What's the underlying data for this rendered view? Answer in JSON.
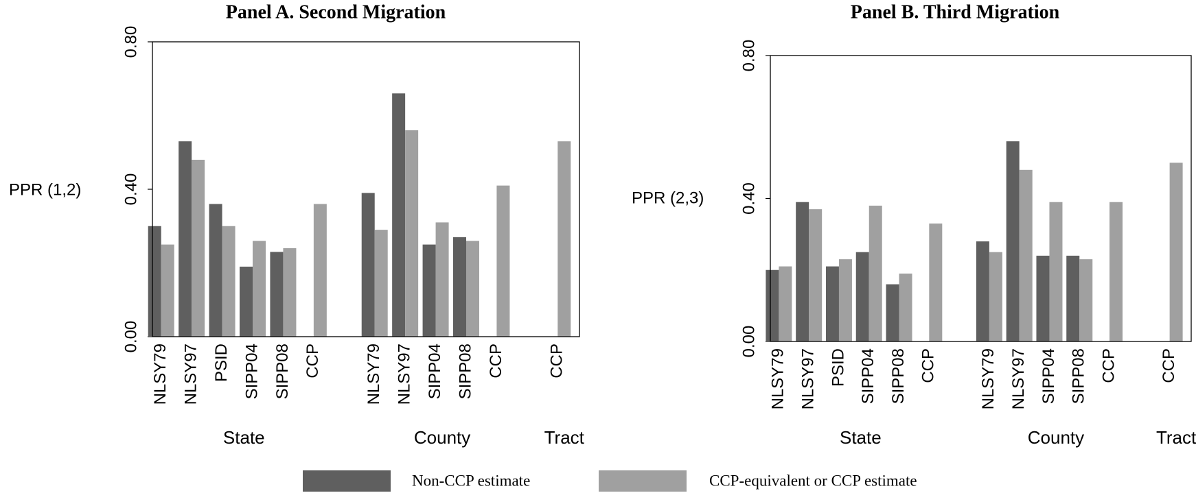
{
  "chart_data": [
    {
      "type": "bar",
      "title": "Panel A. Second Migration",
      "y_label": "PPR (1,2)",
      "categories": [
        "NLSY79",
        "NLSY97",
        "PSID",
        "SIPP04",
        "SIPP08",
        "CCP",
        null,
        "NLSY79",
        "NLSY97",
        "SIPP04",
        "SIPP08",
        "CCP",
        null,
        "CCP"
      ],
      "group_labels": [
        "State",
        "County",
        "Tract"
      ],
      "series": [
        {
          "name": "Non-CCP estimate",
          "color": "#5f5f5f",
          "values": [
            0.3,
            0.53,
            0.36,
            0.19,
            0.23,
            null,
            null,
            0.39,
            0.66,
            0.25,
            0.27,
            null,
            null,
            null
          ]
        },
        {
          "name": "CCP-equivalent or CCP estimate",
          "color": "#a0a0a0",
          "values": [
            0.25,
            0.48,
            0.3,
            0.26,
            0.24,
            0.36,
            null,
            0.29,
            0.56,
            0.31,
            0.26,
            0.41,
            null,
            0.53
          ]
        }
      ],
      "ylim": [
        0,
        0.8
      ],
      "yticks": [
        {
          "value": 0,
          "label": "0.00"
        },
        {
          "value": 0.4,
          "label": "0.40"
        },
        {
          "value": 0.8,
          "label": "0.80"
        }
      ],
      "grid": false
    },
    {
      "type": "bar",
      "title": "Panel B. Third Migration",
      "y_label": "PPR (2,3)",
      "categories": [
        "NLSY79",
        "NLSY97",
        "PSID",
        "SIPP04",
        "SIPP08",
        "CCP",
        null,
        "NLSY79",
        "NLSY97",
        "SIPP04",
        "SIPP08",
        "CCP",
        null,
        "CCP"
      ],
      "group_labels": [
        "State",
        "County",
        "Tract"
      ],
      "series": [
        {
          "color": "#5f5f5f",
          "values": [
            0.2,
            0.39,
            0.21,
            0.25,
            0.16,
            null,
            null,
            0.28,
            0.56,
            0.24,
            0.24,
            null,
            null,
            null
          ]
        },
        {
          "color": "#a0a0a0",
          "values": [
            0.21,
            0.37,
            0.23,
            0.38,
            0.19,
            0.33,
            null,
            0.25,
            0.48,
            0.39,
            0.23,
            0.39,
            null,
            0.5
          ]
        }
      ],
      "ylim": [
        0,
        0.8
      ],
      "yticks": [
        {
          "value": 0,
          "label": "0.00"
        },
        {
          "value": 0.4,
          "label": "0.40"
        },
        {
          "value": 0.8,
          "label": "0.80"
        }
      ],
      "grid": false
    }
  ]
}
